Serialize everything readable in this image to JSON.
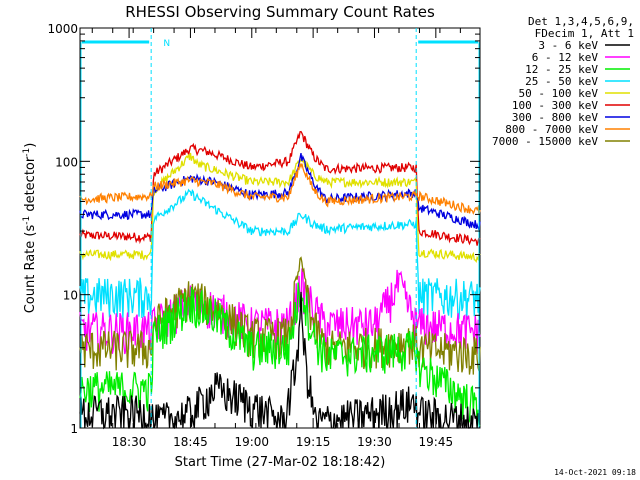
{
  "chart_data": {
    "type": "line",
    "title": "RHESSI Observing Summary Count Rates",
    "xlabel": "Start Time (27-Mar-02 18:18:42)",
    "ylabel": "Count Rate (s",
    "ylabel_exp1": "-1",
    "ylabel_mid": " detector",
    "ylabel_exp2": "-1",
    "ylabel_end": ")",
    "y_scale": "log",
    "ylim": [
      1,
      1000
    ],
    "y_ticks": [
      {
        "value": 1,
        "label": "1"
      },
      {
        "value": 10,
        "label": "10"
      },
      {
        "value": 100,
        "label": "100"
      },
      {
        "value": 1000,
        "label": "1000"
      }
    ],
    "xlim_minutes": [
      18.3,
      19.93
    ],
    "x_ticks": [
      {
        "value": 18.5,
        "label": "18:30"
      },
      {
        "value": 18.75,
        "label": "18:45"
      },
      {
        "value": 19.0,
        "label": "19:00"
      },
      {
        "value": 19.25,
        "label": "19:15"
      },
      {
        "value": 19.5,
        "label": "19:30"
      },
      {
        "value": 19.75,
        "label": "19:45"
      }
    ],
    "legend_header": [
      "Det 1,3,4,5,6,9,",
      "FDecim 1, Att 1"
    ],
    "legend_position": "top-right",
    "flags": {
      "color": "#00e0ff",
      "saa_end": 18.59,
      "saa_start": 19.67,
      "label": "N",
      "label_x": 18.64
    },
    "series": [
      {
        "name": "3 - 6 keV",
        "color": "#000000"
      },
      {
        "name": "6 - 12 keV",
        "color": "#ff00ff"
      },
      {
        "name": "12 - 25 keV",
        "color": "#00ee00"
      },
      {
        "name": "25 - 50 keV",
        "color": "#00e0ff"
      },
      {
        "name": "50 - 100 keV",
        "color": "#e0e000"
      },
      {
        "name": "100 - 300 keV",
        "color": "#e00000"
      },
      {
        "name": "300 - 800 keV",
        "color": "#0000e0"
      },
      {
        "name": "800 - 7000 keV",
        "color": "#ff8000"
      },
      {
        "name": "7000 - 15000 keV",
        "color": "#808000"
      }
    ],
    "profiles": [
      {
        "series": 5,
        "points": [
          [
            18.3,
            28
          ],
          [
            18.59,
            27
          ],
          [
            18.6,
            80
          ],
          [
            18.75,
            125
          ],
          [
            18.82,
            118
          ],
          [
            19.0,
            90
          ],
          [
            19.15,
            100
          ],
          [
            19.2,
            165
          ],
          [
            19.25,
            110
          ],
          [
            19.3,
            88
          ],
          [
            19.67,
            90
          ],
          [
            19.68,
            30
          ],
          [
            19.93,
            25
          ]
        ]
      },
      {
        "series": 4,
        "points": [
          [
            18.3,
            20
          ],
          [
            18.59,
            20
          ],
          [
            18.6,
            60
          ],
          [
            18.75,
            110
          ],
          [
            18.78,
            95
          ],
          [
            19.0,
            70
          ],
          [
            19.15,
            70
          ],
          [
            19.2,
            105
          ],
          [
            19.25,
            80
          ],
          [
            19.3,
            70
          ],
          [
            19.67,
            70
          ],
          [
            19.68,
            21
          ],
          [
            19.93,
            19
          ]
        ]
      },
      {
        "series": 6,
        "points": [
          [
            18.3,
            40
          ],
          [
            18.59,
            40
          ],
          [
            18.6,
            60
          ],
          [
            18.75,
            75
          ],
          [
            18.85,
            70
          ],
          [
            19.0,
            56
          ],
          [
            19.15,
            58
          ],
          [
            19.2,
            108
          ],
          [
            19.25,
            70
          ],
          [
            19.3,
            52
          ],
          [
            19.67,
            58
          ],
          [
            19.68,
            45
          ],
          [
            19.93,
            33
          ]
        ]
      },
      {
        "series": 7,
        "points": [
          [
            18.3,
            52
          ],
          [
            18.59,
            55
          ],
          [
            18.6,
            65
          ],
          [
            18.75,
            72
          ],
          [
            18.85,
            68
          ],
          [
            19.0,
            54
          ],
          [
            19.15,
            54
          ],
          [
            19.2,
            98
          ],
          [
            19.25,
            62
          ],
          [
            19.3,
            50
          ],
          [
            19.67,
            55
          ],
          [
            19.68,
            55
          ],
          [
            19.93,
            42
          ]
        ]
      },
      {
        "series": 3,
        "points": [
          [
            18.3,
            10
          ],
          [
            18.59,
            10
          ],
          [
            18.6,
            37
          ],
          [
            18.75,
            58
          ],
          [
            18.8,
            50
          ],
          [
            19.0,
            30
          ],
          [
            19.15,
            30
          ],
          [
            19.2,
            40
          ],
          [
            19.25,
            34
          ],
          [
            19.3,
            31
          ],
          [
            19.67,
            34
          ],
          [
            19.68,
            10
          ],
          [
            19.93,
            9.6
          ]
        ]
      },
      {
        "series": 1,
        "points": [
          [
            18.3,
            5.5
          ],
          [
            18.59,
            5.5
          ],
          [
            18.6,
            6
          ],
          [
            18.75,
            9
          ],
          [
            18.85,
            8
          ],
          [
            19.0,
            6
          ],
          [
            19.15,
            6
          ],
          [
            19.2,
            12
          ],
          [
            19.25,
            8
          ],
          [
            19.3,
            6
          ],
          [
            19.5,
            6
          ],
          [
            19.6,
            12
          ],
          [
            19.67,
            6
          ],
          [
            19.68,
            6
          ],
          [
            19.93,
            5.3
          ]
        ]
      },
      {
        "series": 8,
        "points": [
          [
            18.3,
            4
          ],
          [
            18.59,
            4
          ],
          [
            18.6,
            6
          ],
          [
            18.75,
            10
          ],
          [
            18.85,
            8
          ],
          [
            19.0,
            5
          ],
          [
            19.15,
            5
          ],
          [
            19.2,
            19
          ],
          [
            19.25,
            6
          ],
          [
            19.3,
            4
          ],
          [
            19.67,
            4.5
          ],
          [
            19.68,
            4
          ],
          [
            19.93,
            3.6
          ]
        ]
      },
      {
        "series": 2,
        "points": [
          [
            18.3,
            2
          ],
          [
            18.59,
            2
          ],
          [
            18.6,
            5
          ],
          [
            18.75,
            9
          ],
          [
            18.85,
            7
          ],
          [
            19.0,
            4
          ],
          [
            19.15,
            4
          ],
          [
            19.2,
            12
          ],
          [
            19.25,
            5
          ],
          [
            19.3,
            3.5
          ],
          [
            19.67,
            4
          ],
          [
            19.68,
            3
          ],
          [
            19.93,
            1.4
          ]
        ]
      },
      {
        "series": 0,
        "points": [
          [
            18.3,
            1.3
          ],
          [
            18.59,
            1.3
          ],
          [
            18.6,
            1.1
          ],
          [
            18.75,
            1.3
          ],
          [
            18.85,
            2
          ],
          [
            19.0,
            1.5
          ],
          [
            19.13,
            1.1
          ],
          [
            19.18,
            3
          ],
          [
            19.2,
            8
          ],
          [
            19.22,
            3
          ],
          [
            19.26,
            1.1
          ],
          [
            19.5,
            1.3
          ],
          [
            19.67,
            1.6
          ],
          [
            19.68,
            1.3
          ],
          [
            19.93,
            1.1
          ]
        ]
      }
    ]
  },
  "footer": "14-Oct-2021 09:18"
}
